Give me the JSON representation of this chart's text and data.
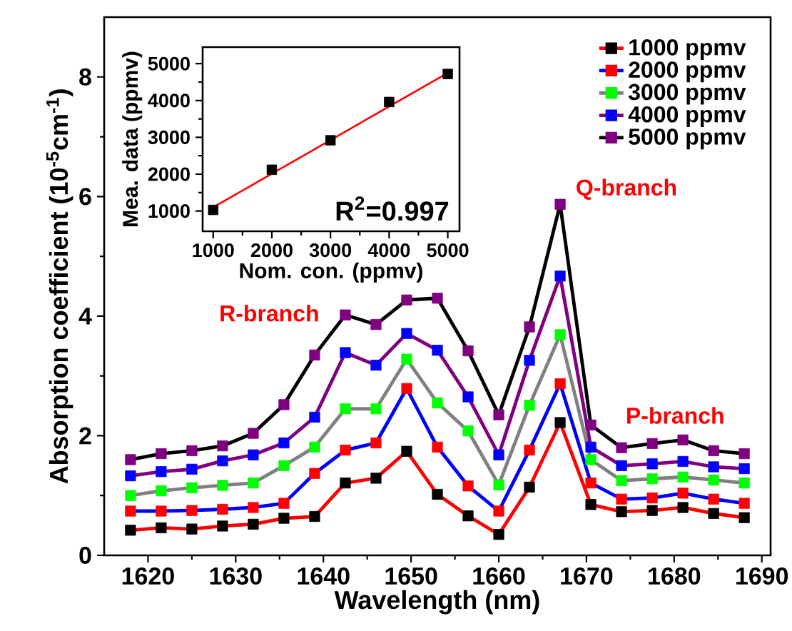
{
  "chart_data": [
    {
      "type": "line",
      "xlabel": "Wavelength (nm)",
      "ylabel": "Absorption coefficient (10$^{-5}$cm$^{-1}$)",
      "xlim": [
        1615,
        1691
      ],
      "ylim": [
        0,
        9
      ],
      "xticks": [
        1620,
        1630,
        1640,
        1650,
        1660,
        1670,
        1680,
        1690
      ],
      "yticks": [
        0,
        2,
        4,
        6,
        8
      ],
      "marker": "square",
      "legend": "top right",
      "annotations": [
        "R-branch",
        "Q-branch",
        "P-branch"
      ],
      "x": [
        1618,
        1621.5,
        1625,
        1628.5,
        1632,
        1635.5,
        1639,
        1642.5,
        1646,
        1649.5,
        1653,
        1656.5,
        1660,
        1663.5,
        1667,
        1670.5,
        1674,
        1677.5,
        1681,
        1684.5,
        1688
      ],
      "series": [
        {
          "name": "1000 ppmv",
          "color": "#ff0000",
          "colors": [
            "#000000",
            "#000000",
            "#000000",
            "#000000",
            "#000000",
            "#000000",
            "#000000",
            "#000000",
            "#000000",
            "#000000",
            "#000000",
            "#000000",
            "#000000",
            "#000000",
            "#000000",
            "#000000",
            "#000000",
            "#000000",
            "#000000",
            "#000000",
            "#000000"
          ],
          "values": [
            0.42,
            0.46,
            0.44,
            0.49,
            0.52,
            0.62,
            0.65,
            1.21,
            1.29,
            1.74,
            1.02,
            0.66,
            0.35,
            1.14,
            2.22,
            0.85,
            0.73,
            0.75,
            0.8,
            0.7,
            0.63
          ]
        },
        {
          "name": "2000 ppmv",
          "color": "#0000ff",
          "colors": [
            "#ff0000",
            "#ff0000",
            "#ff0000",
            "#ff0000",
            "#ff0000",
            "#ff0000",
            "#ff0000",
            "#ff0000",
            "#ff0000",
            "#ff0000",
            "#ff0000",
            "#ff0000",
            "#ff0000",
            "#ff0000",
            "#ff0000",
            "#ff0000",
            "#ff0000",
            "#ff0000",
            "#ff0000",
            "#ff0000",
            "#ff0000"
          ],
          "values": [
            0.74,
            0.74,
            0.75,
            0.77,
            0.8,
            0.87,
            1.37,
            1.76,
            1.88,
            2.79,
            1.81,
            1.16,
            0.74,
            1.76,
            2.87,
            1.21,
            0.94,
            0.96,
            1.04,
            0.94,
            0.87
          ]
        },
        {
          "name": "3000 ppmv",
          "color": "#808080",
          "colors": [
            "#00ff00",
            "#00ff00",
            "#00ff00",
            "#00ff00",
            "#00ff00",
            "#00ff00",
            "#00ff00",
            "#00ff00",
            "#00ff00",
            "#00ff00",
            "#00ff00",
            "#00ff00",
            "#00ff00",
            "#00ff00",
            "#00ff00",
            "#00ff00",
            "#00ff00",
            "#00ff00",
            "#00ff00",
            "#00ff00",
            "#00ff00"
          ],
          "values": [
            1.0,
            1.08,
            1.13,
            1.17,
            1.21,
            1.5,
            1.81,
            2.45,
            2.45,
            3.28,
            2.55,
            2.08,
            1.18,
            2.51,
            3.69,
            1.6,
            1.25,
            1.28,
            1.31,
            1.26,
            1.21
          ]
        },
        {
          "name": "4000 ppmv",
          "color": "#800080",
          "colors": [
            "#0000ff",
            "#0000ff",
            "#0000ff",
            "#0000ff",
            "#0000ff",
            "#0000ff",
            "#0000ff",
            "#0000ff",
            "#0000ff",
            "#0000ff",
            "#0000ff",
            "#0000ff",
            "#0000ff",
            "#0000ff",
            "#0000ff",
            "#0000ff",
            "#0000ff",
            "#0000ff",
            "#0000ff",
            "#0000ff",
            "#0000ff"
          ],
          "values": [
            1.33,
            1.4,
            1.44,
            1.58,
            1.68,
            1.88,
            2.31,
            3.39,
            3.18,
            3.71,
            3.43,
            2.65,
            1.68,
            3.26,
            4.67,
            1.81,
            1.5,
            1.53,
            1.57,
            1.48,
            1.45
          ]
        },
        {
          "name": "5000 ppmv",
          "color": "#000000",
          "colors": [
            "#800080",
            "#800080",
            "#800080",
            "#800080",
            "#800080",
            "#800080",
            "#800080",
            "#800080",
            "#800080",
            "#800080",
            "#800080",
            "#800080",
            "#800080",
            "#800080",
            "#800080",
            "#800080",
            "#800080",
            "#800080",
            "#800080",
            "#800080",
            "#800080"
          ],
          "values": [
            1.6,
            1.7,
            1.75,
            1.83,
            2.04,
            2.52,
            3.35,
            4.02,
            3.86,
            4.27,
            4.3,
            3.42,
            2.35,
            3.82,
            5.87,
            2.18,
            1.8,
            1.87,
            1.93,
            1.75,
            1.7
          ]
        }
      ]
    },
    {
      "type": "scatter",
      "xlabel": "Nom. con. (ppmv)",
      "ylabel": "Mea. data (ppmv)",
      "xlim": [
        820,
        5200
      ],
      "ylim": [
        450,
        5450
      ],
      "xticks": [
        1000,
        2000,
        3000,
        4000,
        5000
      ],
      "yticks": [
        1000,
        2000,
        3000,
        4000,
        5000
      ],
      "marker": "square",
      "annotations": [
        "R$^{2}$=0.997"
      ],
      "series": [
        {
          "type": "line",
          "marker": "none",
          "color": "#ff0000",
          "x": [
            1000,
            5000
          ],
          "values": [
            1100,
            4750
          ]
        },
        {
          "type": "scatter",
          "color": "#000000",
          "x": [
            1000,
            2000,
            3000,
            4000,
            5000
          ],
          "values": [
            1030,
            2120,
            2920,
            3960,
            4720
          ]
        }
      ]
    }
  ]
}
